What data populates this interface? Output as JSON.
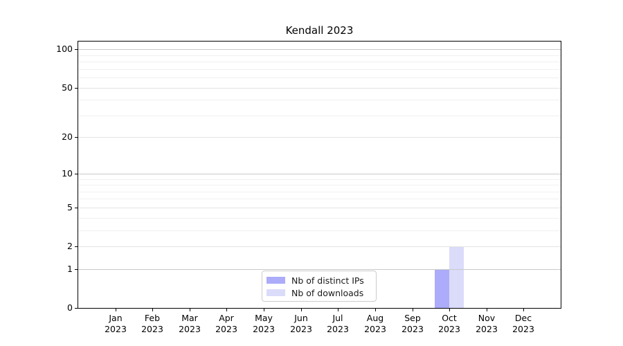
{
  "figure": {
    "background": "#ffffff"
  },
  "chart_data": {
    "type": "bar",
    "title": "Kendall 2023",
    "categories": [
      "Jan",
      "Feb",
      "Mar",
      "Apr",
      "May",
      "Jun",
      "Jul",
      "Aug",
      "Sep",
      "Oct",
      "Nov",
      "Dec"
    ],
    "category_year": "2023",
    "series": [
      {
        "name": "Nb of distinct IPs",
        "color": "#acacfa",
        "values": [
          0,
          0,
          0,
          0,
          0,
          0,
          0,
          0,
          0,
          1,
          0,
          0
        ]
      },
      {
        "name": "Nb of downloads",
        "color": "#dbdbfa",
        "values": [
          0,
          0,
          0,
          0,
          0,
          0,
          0,
          0,
          0,
          2,
          0,
          0
        ]
      }
    ],
    "xlabel": "",
    "ylabel": "",
    "yscale": "log1p",
    "ylim": [
      0,
      115
    ],
    "y_ticks": [
      0,
      1,
      2,
      5,
      10,
      20,
      50,
      100
    ],
    "y_minor_ticks": [
      3,
      4,
      6,
      7,
      8,
      9,
      30,
      40,
      60,
      70,
      80,
      90
    ],
    "grid": "on",
    "legend_position": "lower center",
    "legend_entries": [
      "Nb of distinct IPs",
      "Nb of downloads"
    ]
  },
  "colors": {
    "spine": "#000000",
    "grid_decade": "#c9c9c9",
    "grid_major": "#e3e3e3",
    "grid_minor": "#f0f0f0",
    "legend_border": "#cccccc",
    "text": "#000000"
  }
}
